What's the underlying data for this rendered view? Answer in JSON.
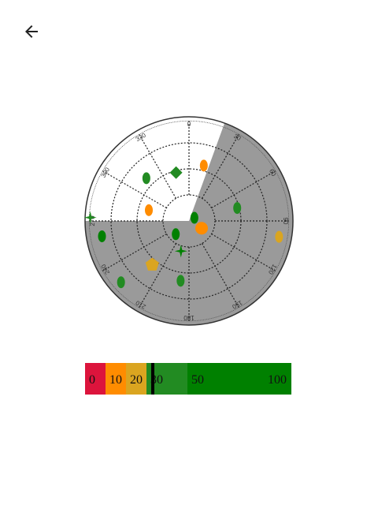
{
  "nav": {
    "back_icon": "arrow-left-icon"
  },
  "skyplot": {
    "azimuth_labels": [
      "0",
      "30",
      "60",
      "90",
      "120",
      "150",
      "180",
      "210",
      "240",
      "270",
      "300",
      "330"
    ],
    "obstruction": {
      "from_az": 20,
      "to_az": 270,
      "color": "#9a9a9a"
    },
    "colors": {
      "strong": "#228b22",
      "strongest": "#008000",
      "medium": "#ff8c00",
      "weak": "#daa520"
    },
    "satellites": [
      {
        "az": 315,
        "el": 0.58,
        "shape": "ellipse",
        "signal": "strong"
      },
      {
        "az": 15,
        "el": 0.55,
        "shape": "ellipse",
        "signal": "medium"
      },
      {
        "az": 345,
        "el": 0.48,
        "shape": "diamond",
        "signal": "strong"
      },
      {
        "az": 75,
        "el": 0.48,
        "shape": "ellipse",
        "signal": "strong"
      },
      {
        "az": 100,
        "el": 0.88,
        "shape": "ellipse",
        "signal": "weak"
      },
      {
        "az": 260,
        "el": 0.85,
        "shape": "ellipse",
        "signal": "strongest"
      },
      {
        "az": 272,
        "el": 0.95,
        "shape": "star",
        "signal": "strong"
      },
      {
        "az": 285,
        "el": 0.4,
        "shape": "ellipse",
        "signal": "medium"
      },
      {
        "az": 60,
        "el": 0.06,
        "shape": "ellipse",
        "signal": "strongest"
      },
      {
        "az": 225,
        "el": 0.18,
        "shape": "ellipse",
        "signal": "strongest"
      },
      {
        "az": 120,
        "el": 0.14,
        "shape": "circle",
        "signal": "medium"
      },
      {
        "az": 195,
        "el": 0.3,
        "shape": "star",
        "signal": "strongest"
      },
      {
        "az": 220,
        "el": 0.55,
        "shape": "pentagon",
        "signal": "weak"
      },
      {
        "az": 188,
        "el": 0.58,
        "shape": "ellipse",
        "signal": "strong"
      },
      {
        "az": 228,
        "el": 0.88,
        "shape": "ellipse",
        "signal": "strong"
      }
    ]
  },
  "snr_scale": {
    "segments": [
      {
        "from": 0,
        "to": 10,
        "color": "#dc143c",
        "label": "0"
      },
      {
        "from": 10,
        "to": 20,
        "color": "#ff8c00",
        "label": "10"
      },
      {
        "from": 20,
        "to": 30,
        "color": "#daa520",
        "label": "20"
      },
      {
        "from": 30,
        "to": 50,
        "color": "#228b22",
        "label": "30"
      },
      {
        "from": 50,
        "to": 100,
        "color": "#008000",
        "label": "50"
      }
    ],
    "end_label": "100",
    "current_value": 33
  }
}
